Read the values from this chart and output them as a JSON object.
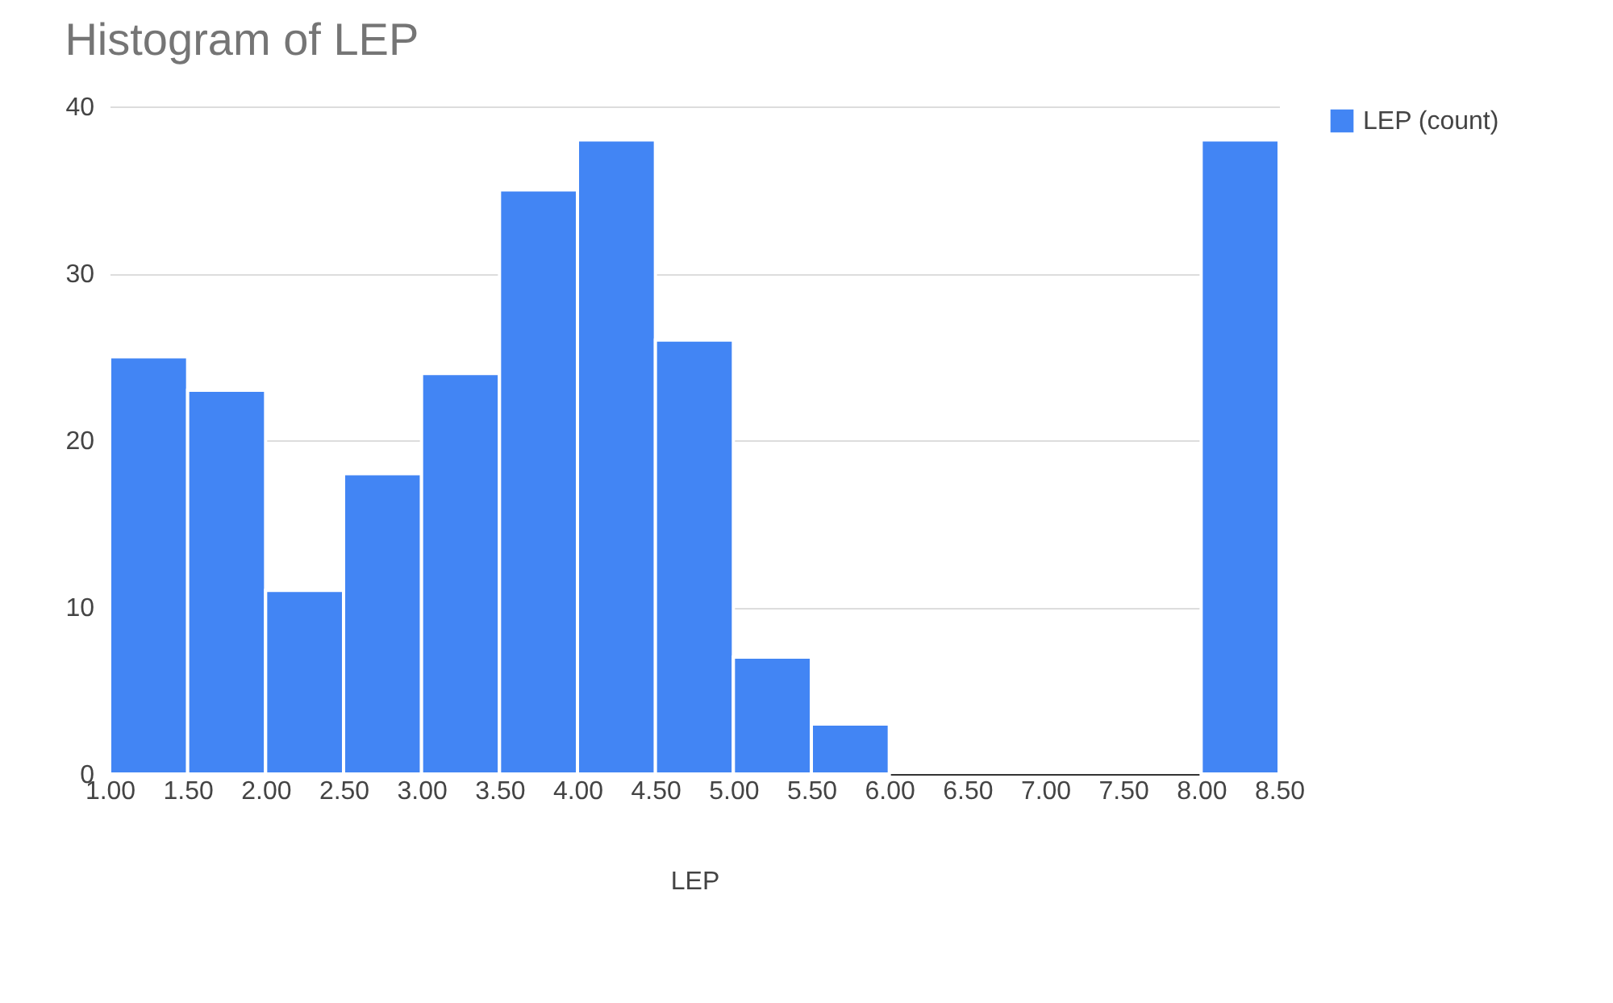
{
  "chart_data": {
    "type": "histogram",
    "title": "Histogram of LEP",
    "xlabel": "LEP",
    "bins": [
      1.0,
      1.5,
      2.0,
      2.5,
      3.0,
      3.5,
      4.0,
      4.5,
      5.0,
      5.5,
      6.0,
      6.5,
      7.0,
      7.5,
      8.0,
      8.5
    ],
    "series": [
      {
        "name": "LEP (count)",
        "color": "#4285f4",
        "values": [
          25,
          23,
          11,
          18,
          24,
          35,
          38,
          26,
          7,
          3,
          0,
          0,
          0,
          0,
          38
        ]
      }
    ],
    "xlim": [
      1.0,
      8.5
    ],
    "xticks": [
      {
        "value": 1.0,
        "label": "1.00"
      },
      {
        "value": 1.5,
        "label": "1.50"
      },
      {
        "value": 2.0,
        "label": "2.00"
      },
      {
        "value": 2.5,
        "label": "2.50"
      },
      {
        "value": 3.0,
        "label": "3.00"
      },
      {
        "value": 3.5,
        "label": "3.50"
      },
      {
        "value": 4.0,
        "label": "4.00"
      },
      {
        "value": 4.5,
        "label": "4.50"
      },
      {
        "value": 5.0,
        "label": "5.00"
      },
      {
        "value": 5.5,
        "label": "5.50"
      },
      {
        "value": 6.0,
        "label": "6.00"
      },
      {
        "value": 6.5,
        "label": "6.50"
      },
      {
        "value": 7.0,
        "label": "7.00"
      },
      {
        "value": 7.5,
        "label": "7.50"
      },
      {
        "value": 8.0,
        "label": "8.00"
      },
      {
        "value": 8.5,
        "label": "8.50"
      }
    ],
    "ylim": [
      0,
      40
    ],
    "yticks": [
      0,
      10,
      20,
      30,
      40
    ],
    "grid": "y",
    "legend": "top right"
  }
}
